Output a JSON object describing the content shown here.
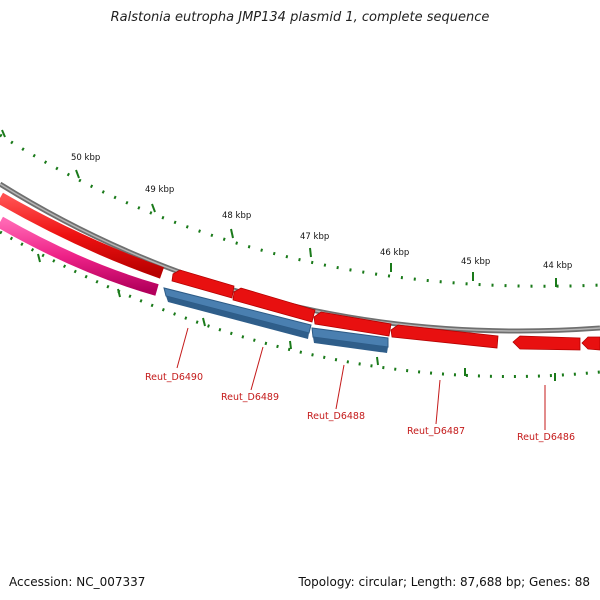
{
  "title": "Ralstonia eutropha JMP134 plasmid 1, complete sequence",
  "footer": {
    "accession": "Accession: NC_007337",
    "stats": "Topology: circular; Length: 87,688 bp; Genes: 88"
  },
  "scale_labels": [
    "50 kbp",
    "49 kbp",
    "48 kbp",
    "47 kbp",
    "46 kbp",
    "45 kbp",
    "44 kbp"
  ],
  "genes": [
    {
      "name": "Reut_D6490",
      "color": "#3a6ea5"
    },
    {
      "name": "Reut_D6489",
      "color": "#3a6ea5"
    },
    {
      "name": "Reut_D6488",
      "color": "#3a6ea5"
    },
    {
      "name": "Reut_D6487",
      "color": "#cc0000"
    },
    {
      "name": "Reut_D6486",
      "color": "#cc0000"
    }
  ],
  "colors": {
    "backbone": "#7a7a7a",
    "forward_gene": "#ee1111",
    "reverse_gene_blue": "#4a7fb0",
    "pink_feature": "#ee2288",
    "tick": "#1a7a1a",
    "label": "#c41a1a"
  }
}
